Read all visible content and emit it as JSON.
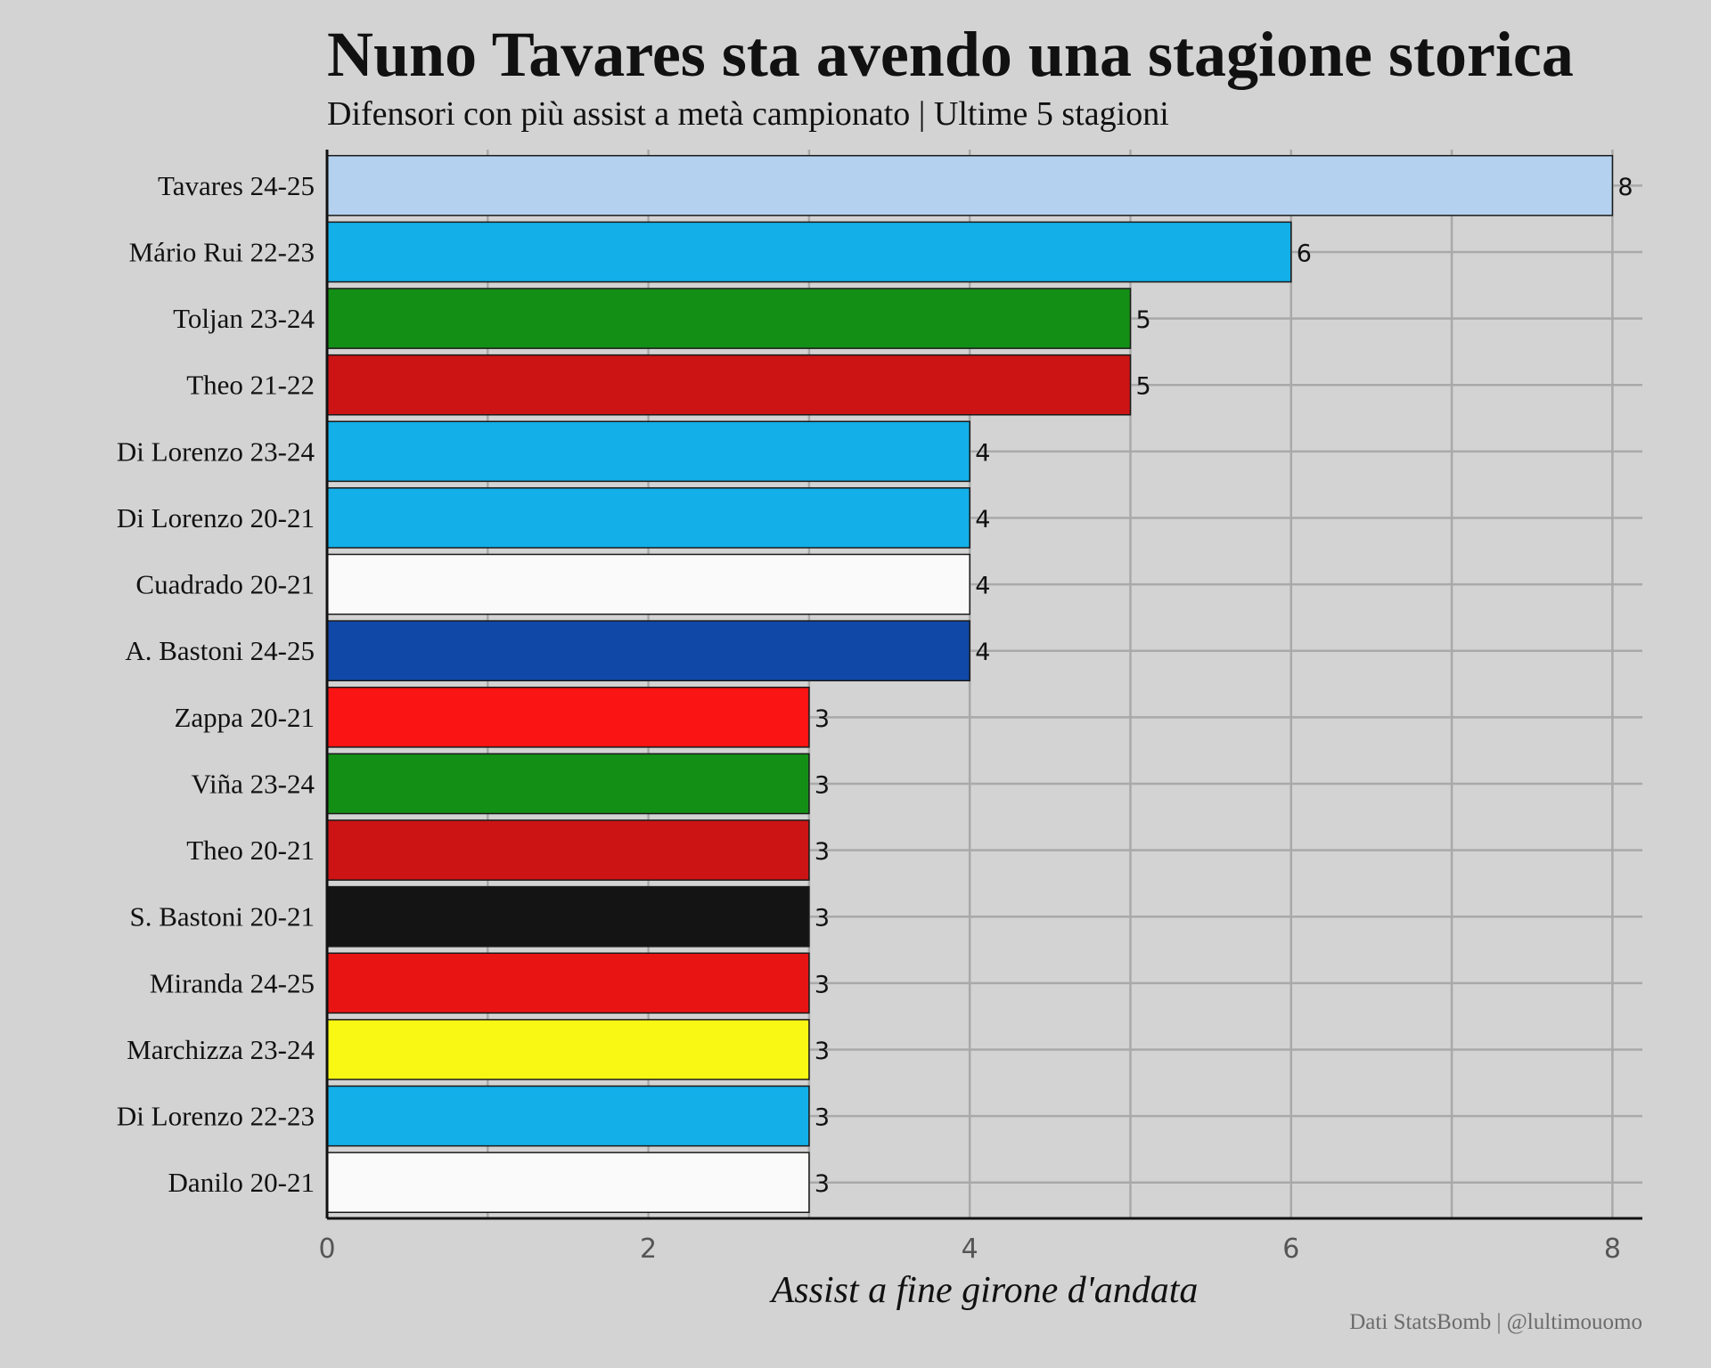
{
  "chart_data": {
    "type": "bar",
    "orientation": "horizontal",
    "title": "Nuno Tavares sta avendo una stagione storica",
    "subtitle": "Difensori con più assist a metà campionato | Ultime 5 stagioni",
    "xlabel": "Assist a fine girone d'andata",
    "ylabel": "",
    "xlim": [
      0,
      8.2
    ],
    "xticks": [
      "0",
      "2",
      "4",
      "6",
      "8"
    ],
    "grid": true,
    "credit": "Dati StatsBomb | @lultimouomo",
    "categories": [
      "Tavares 24-25",
      "Mário Rui 22-23",
      "Toljan 23-24",
      "Theo 21-22",
      "Di Lorenzo 23-24",
      "Di Lorenzo 20-21",
      "Cuadrado 20-21",
      "A. Bastoni 24-25",
      "Zappa 20-21",
      "Viña 23-24",
      "Theo 20-21",
      "S. Bastoni 20-21",
      "Miranda 24-25",
      "Marchizza 23-24",
      "Di Lorenzo 22-23",
      "Danilo 20-21"
    ],
    "values": [
      8,
      6,
      5,
      5,
      4,
      4,
      4,
      4,
      3,
      3,
      3,
      3,
      3,
      3,
      3,
      3
    ],
    "value_labels": [
      "8",
      "6",
      "5",
      "5",
      "4",
      "4",
      "4",
      "4",
      "3",
      "3",
      "3",
      "3",
      "3",
      "3",
      "3",
      "3"
    ],
    "colors": [
      "#b4d2f0",
      "#12afe8",
      "#148f16",
      "#cc1414",
      "#12afe8",
      "#12afe8",
      "#fafafa",
      "#1048a8",
      "#fa1414",
      "#148f16",
      "#cc1414",
      "#141414",
      "#e81414",
      "#f8f814",
      "#12afe8",
      "#fafafa"
    ]
  }
}
